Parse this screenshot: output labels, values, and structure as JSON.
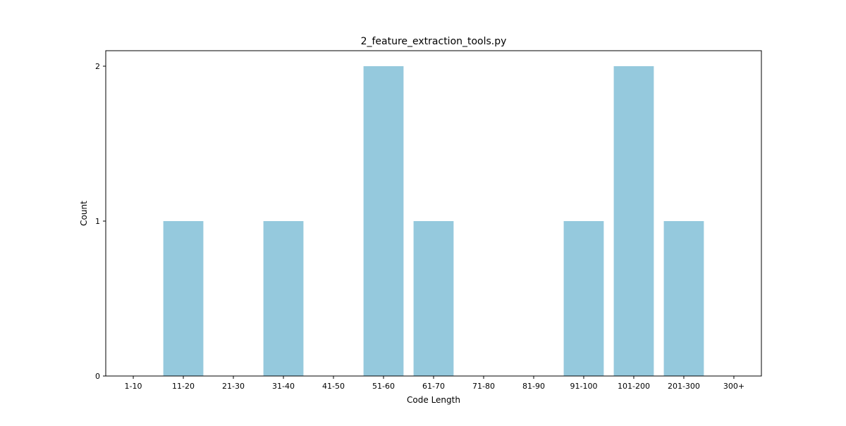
{
  "chart_data": {
    "type": "bar",
    "title": "2_feature_extraction_tools.py",
    "xlabel": "Code Length",
    "ylabel": "Count",
    "categories": [
      "1-10",
      "11-20",
      "21-30",
      "31-40",
      "41-50",
      "51-60",
      "61-70",
      "71-80",
      "81-90",
      "91-100",
      "101-200",
      "201-300",
      "300+"
    ],
    "values": [
      0,
      1,
      0,
      1,
      0,
      2,
      1,
      0,
      0,
      1,
      2,
      1,
      0
    ],
    "ylim": [
      0,
      2.1
    ],
    "yticks": [
      "0",
      "1",
      "2"
    ],
    "grid": false,
    "legend": "none",
    "bar_color": "#95c9dd"
  }
}
